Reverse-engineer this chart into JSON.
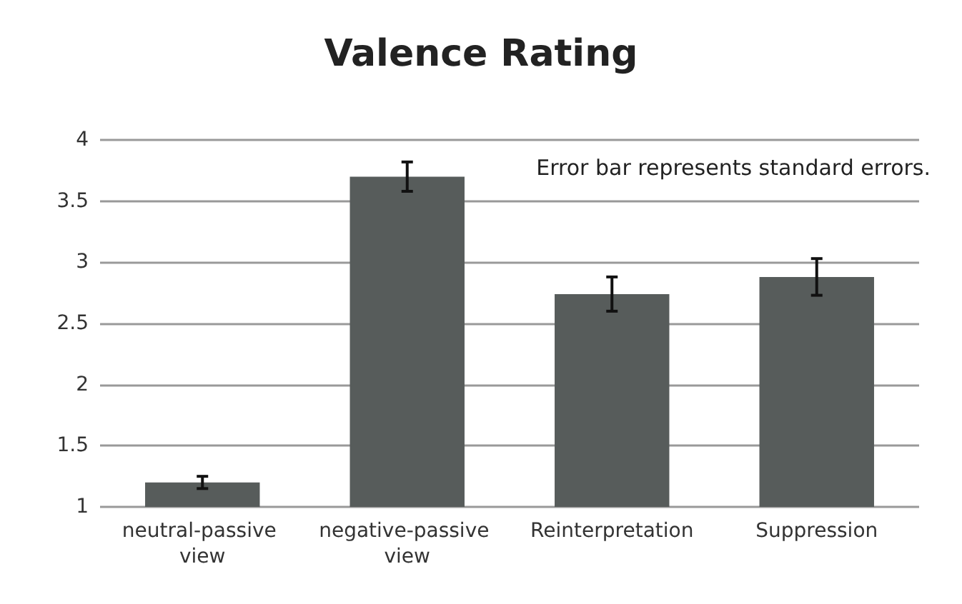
{
  "chart_data": {
    "type": "bar",
    "title": "Valence Rating",
    "categories": [
      "neutral-passive view",
      "negative-passive view",
      "Reinterpretation",
      "Suppression"
    ],
    "values": [
      1.2,
      3.7,
      2.74,
      2.88
    ],
    "errors": [
      0.05,
      0.12,
      0.14,
      0.15
    ],
    "color": "#575c5b",
    "ylim": [
      1,
      4
    ],
    "yticks": [
      1,
      1.5,
      2,
      2.5,
      3,
      3.5,
      4
    ],
    "grid": "y",
    "annotations": [
      "Error bar represents standard errors."
    ]
  }
}
